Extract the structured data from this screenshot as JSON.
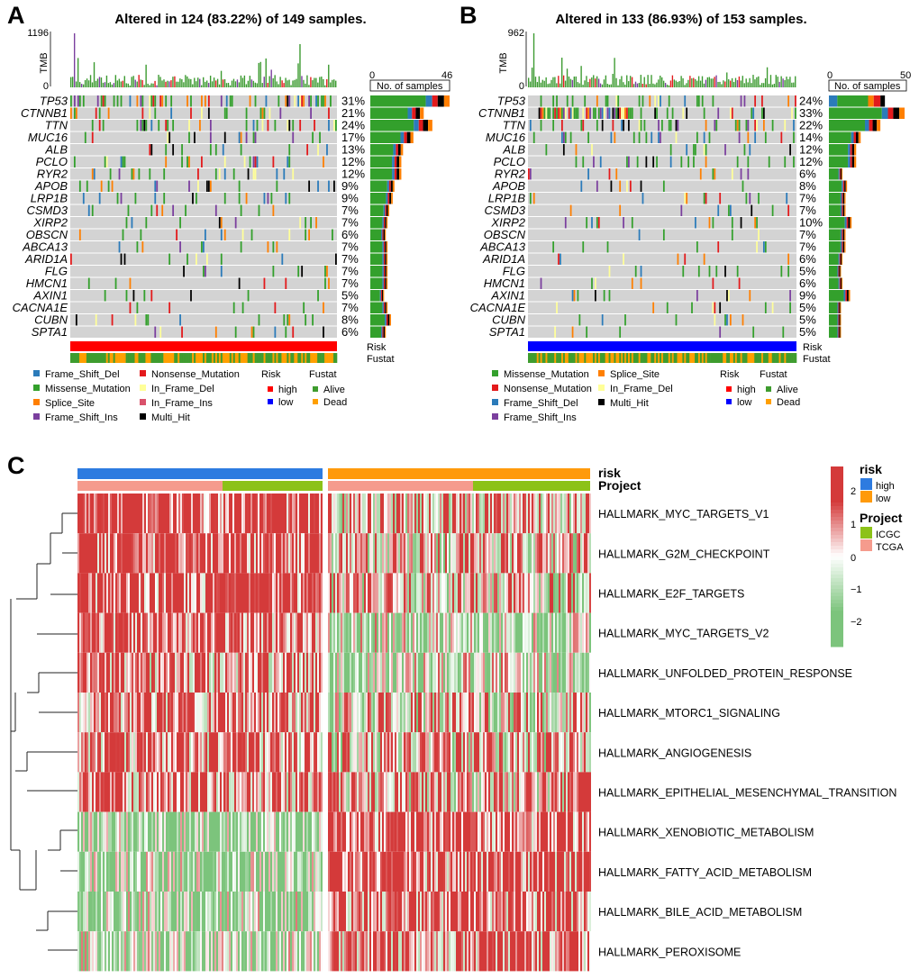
{
  "panel_labels": [
    "A",
    "B",
    "C"
  ],
  "chart_data": [
    {
      "type": "heatmap",
      "subtype": "oncoplot",
      "panel": "A",
      "title": "Altered in 124 (83.22%) of 149 samples.",
      "tmb_axis": {
        "label": "TMB",
        "max_label": "1196",
        "min_label": "0"
      },
      "bar_axis": {
        "label": "No. of samples",
        "min_label": "0",
        "max_label": "46",
        "max": 46
      },
      "genes": [
        "TP53",
        "CTNNB1",
        "TTN",
        "MUC16",
        "ALB",
        "PCLO",
        "RYR2",
        "APOB",
        "LRP1B",
        "CSMD3",
        "XIRP2",
        "OBSCN",
        "ABCA13",
        "ARID1A",
        "FLG",
        "HMCN1",
        "AXIN1",
        "CACNA1E",
        "CUBN",
        "SPTA1"
      ],
      "percentages": [
        "31%",
        "21%",
        "24%",
        "17%",
        "13%",
        "12%",
        "12%",
        "9%",
        "9%",
        "7%",
        "7%",
        "6%",
        "7%",
        "7%",
        "7%",
        "7%",
        "5%",
        "7%",
        "8%",
        "6%"
      ],
      "bar_counts": [
        46,
        31,
        36,
        25,
        19,
        18,
        18,
        14,
        13,
        11,
        10,
        9,
        10,
        10,
        10,
        10,
        8,
        10,
        12,
        9
      ],
      "annotation_labels": [
        "Risk",
        "Fustat"
      ],
      "legend": {
        "mutations": [
          "Frame_Shift_Del",
          "Missense_Mutation",
          "Splice_Site",
          "Frame_Shift_Ins",
          "Nonsense_Mutation",
          "In_Frame_Del",
          "In_Frame_Ins",
          "Multi_Hit"
        ],
        "risk_title": "Risk",
        "risk": [
          "high",
          "low"
        ],
        "fustat_title": "Fustat",
        "fustat": [
          "Alive",
          "Dead"
        ]
      },
      "risk_group": "high"
    },
    {
      "type": "heatmap",
      "subtype": "oncoplot",
      "panel": "B",
      "title": "Altered in 133 (86.93%) of 153 samples.",
      "tmb_axis": {
        "label": "TMB",
        "max_label": "962",
        "min_label": "0"
      },
      "bar_axis": {
        "label": "No. of samples",
        "min_label": "0",
        "max_label": "50",
        "max": 50
      },
      "genes": [
        "TP53",
        "CTNNB1",
        "TTN",
        "MUC16",
        "ALB",
        "PCLO",
        "RYR2",
        "APOB",
        "LRP1B",
        "CSMD3",
        "XIRP2",
        "OBSCN",
        "ABCA13",
        "ARID1A",
        "FLG",
        "HMCN1",
        "AXIN1",
        "CACNA1E",
        "CUBN",
        "SPTA1"
      ],
      "percentages": [
        "24%",
        "33%",
        "22%",
        "14%",
        "12%",
        "12%",
        "6%",
        "8%",
        "7%",
        "7%",
        "10%",
        "7%",
        "7%",
        "6%",
        "5%",
        "6%",
        "9%",
        "5%",
        "5%",
        "5%"
      ],
      "bar_counts": [
        37,
        50,
        34,
        21,
        18,
        18,
        9,
        12,
        11,
        11,
        15,
        11,
        11,
        9,
        8,
        9,
        14,
        8,
        8,
        8
      ],
      "annotation_labels": [
        "Risk",
        "Fustat"
      ],
      "legend": {
        "mutations": [
          "Missense_Mutation",
          "Nonsense_Mutation",
          "Frame_Shift_Del",
          "Frame_Shift_Ins",
          "Splice_Site",
          "In_Frame_Del",
          "Multi_Hit"
        ],
        "risk_title": "Risk",
        "risk": [
          "high",
          "low"
        ],
        "fustat_title": "Fustat",
        "fustat": [
          "Alive",
          "Dead"
        ]
      },
      "risk_group": "low"
    },
    {
      "type": "heatmap",
      "panel": "C",
      "rows": [
        "HALLMARK_MYC_TARGETS_V1",
        "HALLMARK_G2M_CHECKPOINT",
        "HALLMARK_E2F_TARGETS",
        "HALLMARK_MYC_TARGETS_V2",
        "HALLMARK_UNFOLDED_PROTEIN_RESPONSE",
        "HALLMARK_MTORC1_SIGNALING",
        "HALLMARK_ANGIOGENESIS",
        "HALLMARK_EPITHELIAL_MESENCHYMAL_TRANSITION",
        "HALLMARK_XENOBIOTIC_METABOLISM",
        "HALLMARK_FATTY_ACID_METABOLISM",
        "HALLMARK_BILE_ACID_METABOLISM",
        "HALLMARK_PEROXISOME"
      ],
      "row_bias_high": [
        0.8,
        0.75,
        0.75,
        0.65,
        0.4,
        0.55,
        0.5,
        0.5,
        -0.55,
        -0.5,
        -0.45,
        -0.45
      ],
      "row_bias_low": [
        0.3,
        0.2,
        0.15,
        -0.35,
        -0.3,
        0.1,
        0.2,
        0.25,
        0.7,
        0.65,
        0.6,
        0.55
      ],
      "annotation_tracks": [
        "risk",
        "Project"
      ],
      "color_scale": {
        "min": -2.5,
        "max": 2.5,
        "ticks": [
          "2",
          "1",
          "0",
          "−1",
          "−2"
        ],
        "low_color": "#7cc47c",
        "mid_color": "#ffffff",
        "high_color": "#d43a3a"
      },
      "legend": {
        "risk_title": "risk",
        "risk": [
          "high",
          "low"
        ],
        "project_title": "Project",
        "project": [
          "ICGC",
          "TCGA"
        ]
      }
    }
  ],
  "colors": {
    "Frame_Shift_Del": "#2b7bba",
    "Missense_Mutation": "#33a02c",
    "Splice_Site": "#ff7f00",
    "Frame_Shift_Ins": "#7b3f9e",
    "Nonsense_Mutation": "#e31a1c",
    "In_Frame_Del": "#ffff99",
    "In_Frame_Ins": "#d9526b",
    "Multi_Hit": "#000000",
    "wildtype": "#d3d3d3",
    "risk_high": "#ff0000",
    "risk_low": "#0000ff",
    "fustat_alive": "#3e9c2e",
    "fustat_dead": "#ff9f00",
    "tmb_bar": "#3b9a2f",
    "c_risk_high": "#2d7be0",
    "c_risk_low": "#ff9a0b",
    "c_icgc": "#8cc218",
    "c_tcga": "#f59b8d"
  }
}
